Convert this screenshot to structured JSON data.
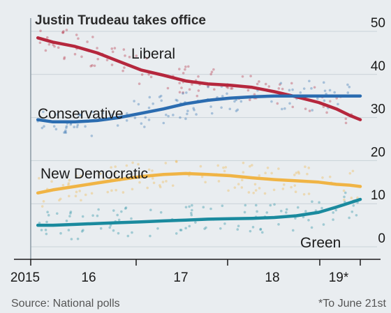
{
  "chart_data": {
    "type": "line",
    "annotation": "Justin Trudeau takes office",
    "x_ticks": [
      "2015",
      "16",
      "17",
      "18",
      "19*"
    ],
    "y_ticks": [
      0,
      10,
      20,
      30,
      40,
      50
    ],
    "ylim": [
      0,
      50
    ],
    "xlim": [
      2015.75,
      2019.47
    ],
    "grid": true,
    "y_axis_side": "right",
    "series": [
      {
        "name": "Liberal",
        "color": "#b5273d",
        "x": [
          2015.83,
          2016.0,
          2016.25,
          2016.5,
          2016.75,
          2017.0,
          2017.25,
          2017.5,
          2017.75,
          2018.0,
          2018.25,
          2018.5,
          2018.75,
          2019.0,
          2019.2,
          2019.35,
          2019.47
        ],
        "values": [
          48.5,
          47.5,
          46.5,
          45.0,
          43.0,
          41.0,
          39.8,
          38.5,
          37.8,
          37.5,
          37.0,
          36.0,
          34.8,
          33.5,
          32.0,
          30.5,
          29.5
        ]
      },
      {
        "name": "Conservative",
        "color": "#2b6cb0",
        "x": [
          2015.83,
          2016.0,
          2016.25,
          2016.5,
          2016.75,
          2017.0,
          2017.25,
          2017.5,
          2017.75,
          2018.0,
          2018.25,
          2018.5,
          2018.75,
          2019.0,
          2019.2,
          2019.35,
          2019.47
        ],
        "values": [
          29.5,
          29.0,
          29.0,
          29.3,
          30.0,
          31.0,
          32.0,
          33.2,
          34.0,
          34.5,
          34.8,
          35.0,
          35.0,
          35.0,
          35.0,
          35.0,
          35.0
        ]
      },
      {
        "name": "New Democratic",
        "color": "#f0b445",
        "x": [
          2015.83,
          2016.0,
          2016.25,
          2016.5,
          2016.75,
          2017.0,
          2017.25,
          2017.5,
          2017.75,
          2018.0,
          2018.25,
          2018.5,
          2018.75,
          2019.0,
          2019.2,
          2019.35,
          2019.47
        ],
        "values": [
          12.5,
          13.2,
          14.0,
          14.8,
          15.6,
          16.3,
          16.8,
          17.0,
          16.8,
          16.5,
          16.0,
          15.6,
          15.3,
          15.0,
          14.5,
          14.3,
          14.0
        ]
      },
      {
        "name": "Green",
        "color": "#1a8a9e",
        "x": [
          2015.83,
          2016.0,
          2016.25,
          2016.5,
          2016.75,
          2017.0,
          2017.25,
          2017.5,
          2017.75,
          2018.0,
          2018.25,
          2018.5,
          2018.75,
          2019.0,
          2019.2,
          2019.35,
          2019.47
        ],
        "values": [
          5.0,
          5.0,
          5.2,
          5.4,
          5.6,
          5.8,
          6.0,
          6.2,
          6.4,
          6.5,
          6.6,
          6.8,
          7.2,
          8.0,
          9.2,
          10.2,
          11.0
        ]
      }
    ]
  },
  "footer": {
    "source": "Source: National polls",
    "note": "*To June 21st"
  }
}
